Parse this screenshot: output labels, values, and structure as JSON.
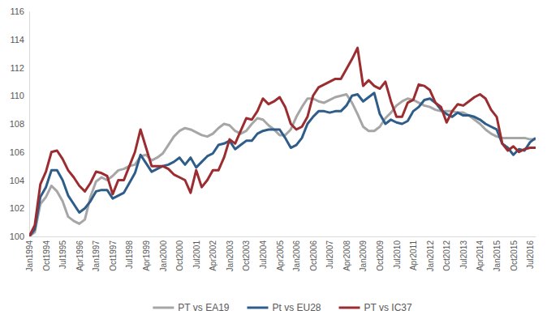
{
  "chart_data": {
    "type": "line",
    "categories": [
      "Jan1994",
      null,
      null,
      "Oct1994",
      null,
      null,
      "Jul1995",
      null,
      null,
      "Apr1996",
      null,
      null,
      "Jan1997",
      null,
      null,
      "Oct1997",
      null,
      null,
      "Jul1998",
      null,
      null,
      "Apr1999",
      null,
      null,
      "Jan2000",
      null,
      null,
      "Oct2000",
      null,
      null,
      "Jul2001",
      null,
      null,
      "Apr2002",
      null,
      null,
      "Jan2003",
      null,
      null,
      "Oct2003",
      null,
      null,
      "Jul2004",
      null,
      null,
      "Apr2005",
      null,
      null,
      "Jan2006",
      null,
      null,
      "Oct2006",
      null,
      null,
      "Jul2007",
      null,
      null,
      "Apr2008",
      null,
      null,
      "Jan2009",
      null,
      null,
      "Oct2009",
      null,
      null,
      "Jul2010",
      null,
      null,
      "Apr2011",
      null,
      null,
      "Jan2012",
      null,
      null,
      "Oct2012",
      null,
      null,
      "Jul2013",
      null,
      null,
      "Apr2014",
      null,
      null,
      "Jan2015",
      null,
      null,
      "Oct2015",
      null,
      null,
      "Jul2016",
      null
    ],
    "series": [
      {
        "name": "PT vs EA19",
        "color": "#a6a6a6",
        "values": [
          100.0,
          100.3,
          102.3,
          102.8,
          103.6,
          103.2,
          102.5,
          101.4,
          101.1,
          100.9,
          101.2,
          102.8,
          103.9,
          104.2,
          104.0,
          104.3,
          104.7,
          104.8,
          105.0,
          105.1,
          105.7,
          105.8,
          105.4,
          105.6,
          105.9,
          106.5,
          107.1,
          107.5,
          107.7,
          107.6,
          107.4,
          107.2,
          107.1,
          107.3,
          107.7,
          108.0,
          107.9,
          107.5,
          107.3,
          107.5,
          108.0,
          108.4,
          108.3,
          107.9,
          107.6,
          107.2,
          107.2,
          107.6,
          108.5,
          109.2,
          109.8,
          109.8,
          109.6,
          109.5,
          109.7,
          109.9,
          110.0,
          110.1,
          109.5,
          108.7,
          107.8,
          107.5,
          107.5,
          107.8,
          108.4,
          108.8,
          109.3,
          109.6,
          109.8,
          109.7,
          109.5,
          109.3,
          109.2,
          109.0,
          108.9,
          108.9,
          108.9,
          108.8,
          108.8,
          108.6,
          108.3,
          108.0,
          107.6,
          107.3,
          107.1,
          107.0,
          107.0,
          107.0,
          107.0,
          107.0,
          106.9,
          106.9
        ]
      },
      {
        "name": "Pt vs EU28",
        "color": "#2f5d8a",
        "values": [
          100.0,
          100.5,
          102.8,
          103.5,
          104.7,
          104.7,
          104.0,
          102.9,
          102.3,
          101.7,
          102.0,
          102.5,
          103.2,
          103.3,
          103.3,
          102.7,
          102.9,
          103.1,
          103.8,
          104.5,
          105.8,
          105.2,
          104.6,
          104.8,
          105.0,
          105.1,
          105.3,
          105.6,
          105.1,
          105.6,
          104.9,
          105.3,
          105.7,
          105.9,
          106.5,
          106.6,
          106.8,
          106.2,
          106.5,
          106.8,
          106.8,
          107.3,
          107.5,
          107.6,
          107.6,
          107.6,
          107.0,
          106.3,
          106.5,
          107.0,
          108.0,
          108.5,
          108.9,
          108.9,
          108.8,
          108.9,
          108.9,
          109.3,
          110.0,
          110.1,
          109.6,
          109.9,
          110.2,
          108.7,
          108.0,
          108.3,
          108.1,
          108.0,
          108.2,
          108.9,
          109.2,
          109.7,
          109.8,
          109.5,
          109.0,
          108.7,
          108.5,
          108.8,
          108.6,
          108.6,
          108.5,
          108.3,
          108.0,
          107.8,
          107.6,
          106.6,
          106.3,
          105.8,
          106.2,
          106.1,
          106.7,
          107.0
        ]
      },
      {
        "name": "PT vs IC37",
        "color": "#9b2d30",
        "values": [
          100.0,
          100.8,
          103.7,
          104.6,
          106.0,
          106.1,
          105.5,
          104.7,
          104.2,
          103.6,
          103.2,
          103.8,
          104.6,
          104.5,
          104.3,
          103.0,
          104.0,
          104.0,
          105.0,
          106.0,
          107.6,
          106.3,
          105.0,
          105.0,
          105.0,
          104.8,
          104.4,
          104.2,
          104.0,
          103.1,
          104.7,
          103.5,
          104.0,
          104.7,
          104.7,
          105.6,
          106.9,
          106.6,
          107.5,
          108.4,
          108.3,
          108.9,
          109.8,
          109.4,
          109.6,
          109.9,
          109.2,
          108.0,
          107.6,
          107.8,
          108.5,
          110.0,
          110.6,
          110.8,
          111.0,
          111.2,
          111.2,
          111.9,
          112.6,
          113.4,
          110.7,
          111.1,
          110.7,
          110.5,
          111.0,
          109.6,
          108.5,
          108.5,
          109.5,
          109.7,
          110.8,
          110.7,
          110.4,
          109.5,
          109.2,
          108.1,
          108.9,
          109.4,
          109.3,
          109.6,
          109.9,
          110.1,
          109.8,
          109.0,
          108.5,
          106.6,
          106.1,
          106.4,
          106.0,
          106.2,
          106.3,
          106.3
        ]
      }
    ],
    "ylim": [
      100,
      116
    ],
    "yticks": [
      100,
      102,
      104,
      106,
      108,
      110,
      112,
      114,
      116
    ],
    "grid": false,
    "legend": "bottom"
  }
}
